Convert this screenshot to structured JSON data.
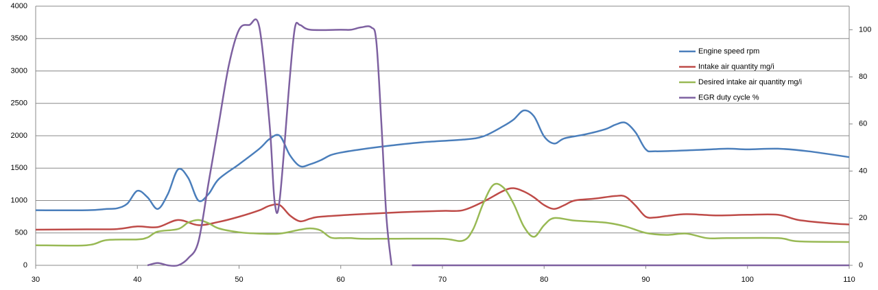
{
  "chart_data": {
    "type": "line",
    "xlim": [
      30,
      110
    ],
    "xticks": [
      30,
      40,
      50,
      60,
      70,
      80,
      90,
      100,
      110
    ],
    "ylim": [
      0,
      4000
    ],
    "yticks": [
      0,
      500,
      1000,
      1500,
      2000,
      2500,
      3000,
      3500,
      4000
    ],
    "y2lim": [
      0,
      110
    ],
    "y2ticks": [
      0,
      20,
      40,
      60,
      80,
      100
    ],
    "grid": true,
    "legend": "right",
    "series": [
      {
        "name": "Engine speed rpm",
        "color": "#4a7ebb",
        "x": [
          30,
          35,
          37,
          38,
          39,
          40,
          41,
          42,
          43,
          44,
          45,
          46,
          47,
          48,
          50,
          52,
          53,
          54,
          55,
          56,
          57,
          58,
          59,
          60,
          62,
          65,
          68,
          72,
          74,
          76,
          77,
          78,
          79,
          80,
          81,
          82,
          84,
          86,
          87,
          88,
          89,
          90,
          91,
          95,
          98,
          100,
          103,
          106,
          110
        ],
        "values": [
          850,
          850,
          870,
          880,
          950,
          1150,
          1050,
          870,
          1100,
          1480,
          1350,
          1000,
          1100,
          1330,
          1560,
          1800,
          1950,
          2000,
          1700,
          1530,
          1560,
          1620,
          1700,
          1740,
          1790,
          1850,
          1900,
          1940,
          1990,
          2150,
          2250,
          2390,
          2300,
          1990,
          1880,
          1960,
          2020,
          2100,
          2170,
          2200,
          2050,
          1790,
          1760,
          1780,
          1800,
          1790,
          1800,
          1760,
          1670
        ]
      },
      {
        "name": "Intake air quantity mg/i",
        "color": "#be4b48",
        "x": [
          30,
          35,
          38,
          40,
          42,
          44,
          46,
          48,
          50,
          52,
          53,
          54,
          55,
          56,
          57,
          58,
          62,
          66,
          70,
          72,
          74,
          76,
          77,
          78,
          79,
          80,
          81,
          82,
          83,
          85,
          87,
          88,
          89,
          90,
          91,
          92,
          94,
          97,
          100,
          103,
          105,
          108,
          110
        ],
        "values": [
          550,
          555,
          560,
          600,
          590,
          700,
          620,
          670,
          750,
          850,
          920,
          930,
          770,
          680,
          720,
          750,
          790,
          820,
          840,
          850,
          980,
          1150,
          1190,
          1140,
          1050,
          930,
          870,
          930,
          1000,
          1030,
          1070,
          1060,
          920,
          750,
          740,
          760,
          790,
          770,
          780,
          780,
          700,
          650,
          630
        ]
      },
      {
        "name": "Desired intake air quantity  mg/i",
        "color": "#98b954",
        "x": [
          30,
          35,
          37,
          40,
          41,
          42,
          44,
          45,
          46,
          47,
          48,
          50,
          52,
          54,
          56,
          57,
          58,
          59,
          60,
          61,
          62,
          65,
          70,
          72,
          73,
          74,
          75,
          76,
          77,
          78,
          79,
          80,
          81,
          83,
          86,
          88,
          90,
          92,
          94,
          96,
          98,
          103,
          105,
          110
        ],
        "values": [
          310,
          310,
          390,
          400,
          430,
          520,
          560,
          660,
          700,
          650,
          570,
          510,
          490,
          490,
          550,
          570,
          540,
          430,
          420,
          420,
          410,
          410,
          410,
          380,
          550,
          950,
          1240,
          1200,
          950,
          600,
          440,
          620,
          730,
          690,
          660,
          600,
          500,
          470,
          490,
          420,
          420,
          420,
          370,
          360
        ]
      },
      {
        "name": "EGR duty cycle %",
        "color": "#7d60a0",
        "axis": "y2",
        "x": [
          41,
          42,
          43,
          44,
          45,
          46,
          47,
          48,
          49,
          50,
          51,
          52,
          53,
          53.5,
          54,
          55,
          55.5,
          56,
          57,
          60,
          61,
          62,
          63,
          63.5,
          64,
          64.5,
          65,
          66,
          67,
          110
        ],
        "values": [
          0,
          1,
          0,
          0,
          3,
          10,
          35,
          60,
          85,
          100,
          102,
          101,
          60,
          27,
          28,
          80,
          101,
          102,
          100,
          100,
          100,
          101,
          101,
          95,
          60,
          20,
          0,
          null,
          0,
          0
        ]
      }
    ]
  }
}
